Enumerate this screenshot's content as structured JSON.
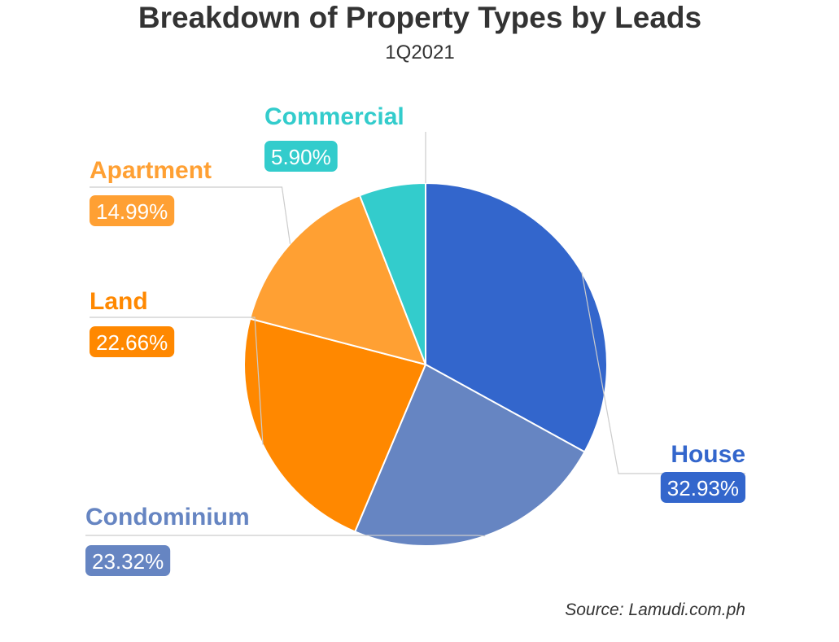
{
  "chart_data": {
    "type": "pie",
    "title": "Breakdown of Property Types by Leads",
    "subtitle": "1Q2021",
    "source": "Source: Lamudi.com.ph",
    "slices": [
      {
        "label": "House",
        "value": 32.93,
        "value_label": "32.93%",
        "color": "#3366CC"
      },
      {
        "label": "Condominium",
        "value": 23.32,
        "value_label": "23.32%",
        "color": "#6685C2"
      },
      {
        "label": "Land",
        "value": 22.66,
        "value_label": "22.66%",
        "color": "#FF8800"
      },
      {
        "label": "Apartment",
        "value": 14.99,
        "value_label": "14.99%",
        "color": "#FFA033"
      },
      {
        "label": "Commercial",
        "value": 5.9,
        "value_label": "5.90%",
        "color": "#33CCCC"
      }
    ]
  }
}
